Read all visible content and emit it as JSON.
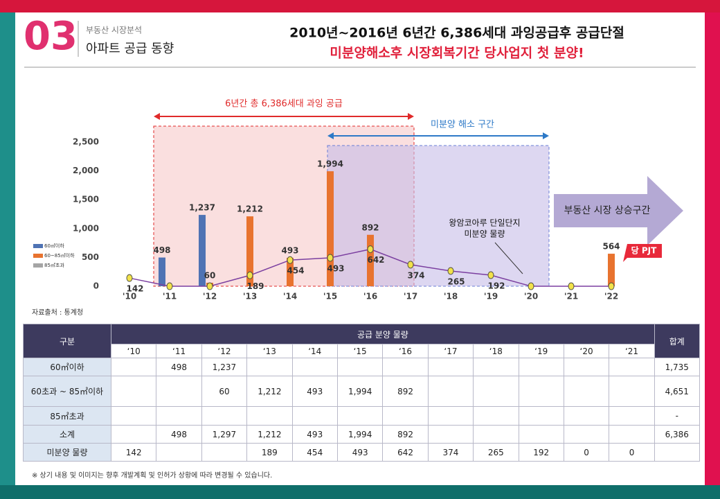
{
  "header": {
    "number": "03",
    "category": "부동산 시장분석",
    "section": "아파트 공급 동향",
    "headline": "2010년~2016년 6년간 6,386세대 과잉공급후 공급단절",
    "subheadline": "미분양해소후 시장회복기간 당사업지 첫 분양!"
  },
  "chart_data": {
    "type": "bar",
    "categories": [
      "'10",
      "'11",
      "'12",
      "'13",
      "'14",
      "'15",
      "'16",
      "'17",
      "'18",
      "'19",
      "'20",
      "'21",
      "'22"
    ],
    "series": [
      {
        "name": "60㎡이하",
        "color": "#4f73b4",
        "values": [
          null,
          498,
          1237,
          null,
          null,
          null,
          null,
          null,
          null,
          null,
          null,
          null,
          null
        ],
        "value_labels": [
          null,
          "498",
          "1,237",
          null,
          null,
          null,
          null,
          null,
          null,
          null,
          null,
          null,
          null
        ]
      },
      {
        "name": "60~85㎡이하",
        "color": "#e8732f",
        "values": [
          null,
          null,
          60,
          1212,
          493,
          1994,
          892,
          null,
          null,
          null,
          null,
          null,
          564
        ],
        "value_labels": [
          null,
          null,
          "60",
          "1,212",
          "493",
          "1,994",
          "892",
          null,
          null,
          null,
          null,
          null,
          "564"
        ]
      },
      {
        "name": "85㎡초과",
        "color": "#a5a5a5",
        "values": [
          null,
          null,
          null,
          null,
          null,
          null,
          null,
          null,
          null,
          null,
          null,
          null,
          null
        ]
      }
    ],
    "line": {
      "color": "#7b3fa0",
      "values": [
        142,
        0,
        0,
        189,
        454,
        493,
        642,
        374,
        265,
        192,
        0,
        0,
        0
      ],
      "value_labels": [
        "142",
        null,
        null,
        "189",
        "454",
        "493",
        "642",
        "374",
        "265",
        "192",
        null,
        null,
        null
      ]
    },
    "ylim": [
      0,
      2500
    ],
    "yticks": [
      0,
      500,
      {
        "value": 1000,
        "label": "1,000"
      },
      {
        "value": 1500,
        "label": "1,500"
      },
      {
        "value": 2000,
        "label": "2,000"
      },
      {
        "value": 2500,
        "label": "2,500"
      }
    ],
    "annotations": {
      "oversupply": "6년간 총 6,386세대 과잉 공급",
      "resolve": "미분양 해소 구간",
      "rise": "부동산 시장 상승구간",
      "note1": "왕암코아루 단일단지",
      "note2": "미분양 물량",
      "project": "당 PJT"
    },
    "source": "자료출처 : 통계청"
  },
  "table": {
    "header": "구분",
    "supply": "공급 분양 물량",
    "total": "합계",
    "years": [
      "‘10",
      "‘11",
      "‘12",
      "‘13",
      "‘14",
      "‘15",
      "‘16",
      "‘17",
      "‘18",
      "‘19",
      "‘20",
      "‘21"
    ],
    "rows": [
      {
        "label": "60㎡이하",
        "cells": [
          null,
          "498",
          "1,237",
          null,
          null,
          null,
          null,
          null,
          null,
          null,
          null,
          null
        ],
        "total": "1,735"
      },
      {
        "label": "60초과 ~ 85㎡이하",
        "cells": [
          null,
          null,
          "60",
          "1,212",
          "493",
          "1,994",
          "892",
          null,
          null,
          null,
          null,
          null
        ],
        "total": "4,651"
      },
      {
        "label": "85㎡초과",
        "cells": [
          null,
          null,
          null,
          null,
          null,
          null,
          null,
          null,
          null,
          null,
          null,
          null
        ],
        "total": "-"
      },
      {
        "label": "소계",
        "cells": [
          null,
          "498",
          "1,297",
          "1,212",
          "493",
          "1,994",
          "892",
          null,
          null,
          null,
          null,
          null
        ],
        "total": "6,386"
      },
      {
        "label": "미분양 물량",
        "cells": [
          "142",
          null,
          null,
          "189",
          "454",
          "493",
          "642",
          "374",
          "265",
          "192",
          "0",
          "0"
        ],
        "total": null
      }
    ]
  },
  "footnote": "※ 상기 내용 및 이미지는 향후 개발계획 및 인허가 상황에 따라 변경될 수 있습니다."
}
